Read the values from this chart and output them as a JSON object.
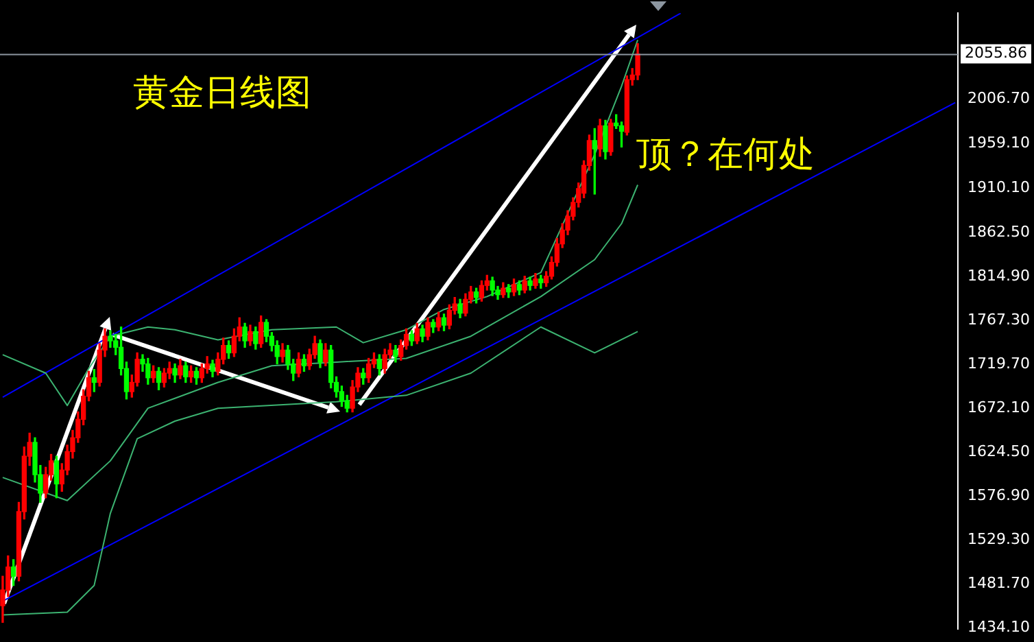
{
  "chart_data": {
    "type": "candlestick",
    "title": "黄金日线图",
    "annotations": [
      "顶？在何处"
    ],
    "categories": [
      null,
      null,
      null,
      null,
      null,
      null,
      null,
      null,
      null,
      null,
      null,
      null,
      null,
      null,
      null,
      null,
      null,
      null,
      null,
      null,
      null,
      null,
      null,
      null,
      null,
      null,
      null,
      null,
      null,
      null,
      null,
      null,
      null,
      null,
      null,
      null,
      null,
      null,
      null,
      null,
      null,
      null,
      null,
      null,
      null,
      null,
      null,
      null,
      null,
      null,
      null,
      null,
      null,
      null,
      null,
      null,
      null,
      null,
      null,
      null,
      null,
      null,
      null,
      null,
      null,
      null,
      null,
      null,
      null,
      null,
      null,
      null,
      null,
      null,
      null,
      null,
      null,
      null,
      null,
      null,
      null,
      null,
      null,
      null,
      null,
      null,
      null,
      null,
      null,
      null,
      null,
      null,
      null,
      null,
      null,
      null,
      null,
      null,
      null,
      null,
      null,
      null,
      null,
      null,
      null,
      null,
      null,
      null,
      null,
      null,
      null,
      null,
      null,
      null,
      null,
      null,
      null,
      null,
      null,
      null,
      null,
      null,
      null,
      null,
      null,
      null,
      null,
      null,
      null,
      null,
      null,
      null,
      null,
      null,
      null,
      null,
      null,
      null,
      null,
      null,
      null,
      null,
      null,
      null,
      null,
      null,
      null,
      null,
      null,
      null,
      null,
      null,
      null,
      null,
      null,
      null,
      null,
      null,
      null,
      null,
      null,
      null,
      null,
      null,
      null,
      null,
      null,
      null,
      null,
      null,
      null,
      null,
      null,
      null,
      null,
      null,
      null,
      null
    ],
    "ohlc": [
      [
        1458,
        1490,
        1440,
        1475
      ],
      [
        1475,
        1512,
        1468,
        1500
      ],
      [
        1500,
        1508,
        1480,
        1490
      ],
      [
        1490,
        1570,
        1485,
        1560
      ],
      [
        1560,
        1630,
        1552,
        1620
      ],
      [
        1620,
        1645,
        1610,
        1635
      ],
      [
        1635,
        1640,
        1592,
        1600
      ],
      [
        1600,
        1610,
        1570,
        1580
      ],
      [
        1580,
        1608,
        1575,
        1600
      ],
      [
        1600,
        1622,
        1594,
        1615
      ],
      [
        1615,
        1620,
        1575,
        1590
      ],
      [
        1590,
        1612,
        1582,
        1605
      ],
      [
        1605,
        1632,
        1600,
        1625
      ],
      [
        1625,
        1648,
        1618,
        1640
      ],
      [
        1640,
        1668,
        1635,
        1660
      ],
      [
        1660,
        1692,
        1654,
        1685
      ],
      [
        1685,
        1712,
        1680,
        1705
      ],
      [
        1705,
        1714,
        1690,
        1700
      ],
      [
        1700,
        1742,
        1696,
        1735
      ],
      [
        1735,
        1758,
        1728,
        1750
      ],
      [
        1750,
        1756,
        1738,
        1745
      ],
      [
        1745,
        1752,
        1730,
        1738
      ],
      [
        1738,
        1760,
        1708,
        1715
      ],
      [
        1715,
        1722,
        1682,
        1690
      ],
      [
        1690,
        1708,
        1684,
        1700
      ],
      [
        1700,
        1732,
        1696,
        1725
      ],
      [
        1725,
        1730,
        1712,
        1720
      ],
      [
        1720,
        1726,
        1698,
        1705
      ],
      [
        1705,
        1718,
        1700,
        1712
      ],
      [
        1712,
        1716,
        1692,
        1700
      ],
      [
        1700,
        1715,
        1695,
        1710
      ],
      [
        1710,
        1722,
        1704,
        1715
      ],
      [
        1715,
        1720,
        1700,
        1708
      ],
      [
        1708,
        1725,
        1704,
        1718
      ],
      [
        1718,
        1722,
        1700,
        1706
      ],
      [
        1706,
        1718,
        1700,
        1712
      ],
      [
        1712,
        1716,
        1698,
        1705
      ],
      [
        1705,
        1720,
        1700,
        1715
      ],
      [
        1715,
        1728,
        1710,
        1720
      ],
      [
        1720,
        1724,
        1706,
        1712
      ],
      [
        1712,
        1732,
        1708,
        1725
      ],
      [
        1725,
        1748,
        1720,
        1740
      ],
      [
        1740,
        1745,
        1726,
        1732
      ],
      [
        1732,
        1758,
        1728,
        1750
      ],
      [
        1750,
        1770,
        1745,
        1760
      ],
      [
        1760,
        1764,
        1738,
        1745
      ],
      [
        1745,
        1762,
        1740,
        1755
      ],
      [
        1755,
        1760,
        1736,
        1742
      ],
      [
        1742,
        1772,
        1738,
        1765
      ],
      [
        1765,
        1768,
        1744,
        1750
      ],
      [
        1750,
        1754,
        1734,
        1740
      ],
      [
        1740,
        1745,
        1720,
        1728
      ],
      [
        1728,
        1742,
        1722,
        1735
      ],
      [
        1735,
        1740,
        1714,
        1720
      ],
      [
        1720,
        1725,
        1702,
        1710
      ],
      [
        1710,
        1732,
        1706,
        1725
      ],
      [
        1725,
        1730,
        1712,
        1718
      ],
      [
        1718,
        1736,
        1714,
        1730
      ],
      [
        1730,
        1750,
        1726,
        1742
      ],
      [
        1742,
        1746,
        1716,
        1722
      ],
      [
        1722,
        1742,
        1718,
        1735
      ],
      [
        1735,
        1740,
        1694,
        1700
      ],
      [
        1700,
        1706,
        1684,
        1690
      ],
      [
        1690,
        1696,
        1674,
        1680
      ],
      [
        1680,
        1686,
        1668,
        1672
      ],
      [
        1672,
        1702,
        1668,
        1695
      ],
      [
        1695,
        1716,
        1690,
        1710
      ],
      [
        1710,
        1715,
        1698,
        1705
      ],
      [
        1705,
        1726,
        1700,
        1720
      ],
      [
        1720,
        1732,
        1716,
        1725
      ],
      [
        1725,
        1730,
        1708,
        1715
      ],
      [
        1715,
        1736,
        1710,
        1730
      ],
      [
        1730,
        1742,
        1726,
        1735
      ],
      [
        1735,
        1740,
        1722,
        1728
      ],
      [
        1728,
        1746,
        1724,
        1740
      ],
      [
        1740,
        1758,
        1736,
        1752
      ],
      [
        1752,
        1756,
        1740,
        1745
      ],
      [
        1745,
        1764,
        1742,
        1758
      ],
      [
        1758,
        1762,
        1744,
        1750
      ],
      [
        1750,
        1770,
        1746,
        1765
      ],
      [
        1765,
        1768,
        1754,
        1760
      ],
      [
        1760,
        1776,
        1756,
        1770
      ],
      [
        1770,
        1774,
        1756,
        1762
      ],
      [
        1762,
        1784,
        1758,
        1778
      ],
      [
        1778,
        1792,
        1774,
        1785
      ],
      [
        1785,
        1790,
        1770,
        1775
      ],
      [
        1775,
        1796,
        1772,
        1790
      ],
      [
        1790,
        1804,
        1786,
        1798
      ],
      [
        1798,
        1802,
        1786,
        1792
      ],
      [
        1792,
        1810,
        1788,
        1805
      ],
      [
        1805,
        1816,
        1800,
        1810
      ],
      [
        1810,
        1814,
        1794,
        1800
      ],
      [
        1800,
        1804,
        1790,
        1795
      ],
      [
        1795,
        1808,
        1792,
        1802
      ],
      [
        1802,
        1806,
        1792,
        1798
      ],
      [
        1798,
        1812,
        1794,
        1806
      ],
      [
        1806,
        1810,
        1795,
        1800
      ],
      [
        1800,
        1815,
        1797,
        1810
      ],
      [
        1810,
        1814,
        1800,
        1805
      ],
      [
        1805,
        1818,
        1802,
        1812
      ],
      [
        1812,
        1816,
        1802,
        1808
      ],
      [
        1808,
        1820,
        1804,
        1815
      ],
      [
        1815,
        1836,
        1812,
        1830
      ],
      [
        1830,
        1856,
        1826,
        1850
      ],
      [
        1850,
        1872,
        1846,
        1865
      ],
      [
        1865,
        1886,
        1860,
        1880
      ],
      [
        1880,
        1900,
        1876,
        1895
      ],
      [
        1895,
        1916,
        1890,
        1910
      ],
      [
        1905,
        1940,
        1900,
        1935
      ],
      [
        1935,
        1968,
        1930,
        1962
      ],
      [
        1962,
        1975,
        1904,
        1953
      ],
      [
        1953,
        1985,
        1945,
        1978
      ],
      [
        1978,
        1984,
        1942,
        1950
      ],
      [
        1950,
        1985,
        1946,
        1981
      ],
      [
        1981,
        1990,
        1975,
        1978
      ],
      [
        1978,
        1982,
        1955,
        1972
      ],
      [
        1971,
        2032,
        1968,
        2028
      ],
      [
        2028,
        2040,
        2022,
        2033
      ],
      [
        2033,
        2067,
        2028,
        2055.86
      ],
      null,
      null,
      null,
      null,
      null,
      null,
      null,
      null,
      null,
      null,
      null,
      null,
      null,
      null,
      null,
      null,
      null,
      null,
      null,
      null,
      null,
      null,
      null,
      null,
      null,
      null,
      null,
      null,
      null,
      null,
      null,
      null,
      null,
      null,
      null,
      null,
      null,
      null,
      null,
      null,
      null,
      null,
      null,
      null,
      null,
      null,
      null,
      null,
      null,
      null,
      null,
      null,
      null,
      null,
      null,
      null,
      null,
      null,
      null
    ],
    "series": [
      {
        "type": "line",
        "color": "#3cb371",
        "values": [
          1730,
          null,
          null,
          null,
          null,
          null,
          null,
          null,
          1710,
          null,
          null,
          null,
          1675,
          null,
          null,
          null,
          1715,
          null,
          null,
          null,
          1750,
          null,
          null,
          null,
          null,
          null,
          null,
          1760,
          null,
          null,
          null,
          null,
          1757,
          null,
          null,
          null,
          null,
          null,
          null,
          null,
          1746,
          null,
          null,
          null,
          null,
          null,
          null,
          null,
          null,
          null,
          1757,
          null,
          null,
          null,
          null,
          null,
          null,
          null,
          null,
          null,
          null,
          null,
          1760,
          null,
          null,
          null,
          null,
          1743,
          null,
          null,
          null,
          null,
          null,
          null,
          null,
          1757,
          null,
          null,
          null,
          null,
          null,
          null,
          1779,
          null,
          null,
          null,
          null,
          null,
          null,
          null,
          1793,
          null,
          null,
          null,
          null,
          null,
          null,
          null,
          null,
          null,
          1819,
          null,
          null,
          null,
          null,
          null,
          null,
          null,
          null,
          null,
          1947,
          null,
          null,
          null,
          null,
          2021,
          null,
          null,
          2071,
          null,
          null,
          null,
          null,
          null,
          null,
          null,
          null,
          null,
          null,
          null,
          null,
          null,
          null,
          null,
          null,
          null,
          null,
          null,
          null,
          null,
          null,
          null,
          null,
          null,
          null,
          null,
          null,
          null,
          null,
          null,
          null,
          null,
          null,
          null,
          null,
          null,
          null,
          null,
          null,
          null,
          null,
          null,
          null,
          null,
          null,
          null,
          null,
          null,
          null,
          null,
          null,
          null,
          null,
          null,
          null,
          null,
          null,
          null
        ]
      },
      {
        "type": "line",
        "color": "#3cb371",
        "values": [
          1597,
          null,
          null,
          null,
          null,
          null,
          null,
          null,
          null,
          null,
          null,
          null,
          1572,
          null,
          null,
          null,
          null,
          null,
          null,
          null,
          1615,
          null,
          null,
          null,
          null,
          null,
          null,
          1672,
          null,
          null,
          null,
          null,
          null,
          null,
          null,
          null,
          null,
          null,
          null,
          null,
          1700,
          null,
          null,
          null,
          null,
          null,
          null,
          null,
          null,
          null,
          1718,
          null,
          null,
          null,
          null,
          null,
          null,
          null,
          null,
          null,
          null,
          null,
          1722,
          null,
          null,
          null,
          null,
          null,
          null,
          null,
          null,
          null,
          null,
          null,
          null,
          1726,
          null,
          null,
          null,
          null,
          null,
          null,
          null,
          null,
          null,
          null,
          null,
          1750,
          null,
          null,
          null,
          null,
          null,
          null,
          null,
          null,
          null,
          null,
          null,
          null,
          1793,
          null,
          null,
          null,
          null,
          null,
          null,
          null,
          null,
          null,
          1833,
          null,
          null,
          null,
          null,
          1872,
          null,
          null,
          1914,
          null,
          null,
          null,
          null,
          null,
          null,
          null,
          null,
          null,
          null,
          null,
          null,
          null,
          null,
          null,
          null,
          null,
          null,
          null,
          null,
          null,
          null,
          null,
          null,
          null,
          null,
          null,
          null,
          null,
          null,
          null,
          null,
          null,
          null,
          null,
          null,
          null,
          null,
          null,
          null,
          null,
          null,
          null,
          null,
          null,
          null,
          null,
          null,
          null,
          null,
          null,
          null,
          null,
          null,
          null,
          null,
          null,
          null,
          null
        ]
      },
      {
        "type": "line",
        "color": "#3cb371",
        "values": [
          1448,
          null,
          null,
          null,
          null,
          null,
          null,
          null,
          null,
          null,
          null,
          null,
          1451,
          null,
          null,
          null,
          null,
          1480,
          null,
          null,
          1558,
          null,
          null,
          null,
          null,
          1639,
          null,
          null,
          null,
          null,
          null,
          null,
          1658,
          null,
          null,
          null,
          null,
          null,
          null,
          null,
          1672,
          null,
          null,
          null,
          null,
          null,
          null,
          null,
          null,
          null,
          null,
          null,
          null,
          null,
          null,
          null,
          null,
          null,
          null,
          null,
          null,
          null,
          1679,
          null,
          null,
          null,
          null,
          null,
          null,
          null,
          null,
          null,
          null,
          null,
          null,
          1686,
          null,
          null,
          null,
          null,
          null,
          null,
          null,
          null,
          null,
          null,
          null,
          1710,
          null,
          null,
          null,
          null,
          null,
          null,
          null,
          null,
          null,
          null,
          null,
          null,
          1760,
          null,
          null,
          null,
          null,
          null,
          null,
          null,
          null,
          null,
          1732,
          null,
          null,
          null,
          null,
          null,
          null,
          null,
          1755,
          null,
          null,
          null,
          null,
          null,
          null,
          null,
          null,
          null,
          null,
          null,
          null,
          null,
          null,
          null,
          null,
          null,
          null,
          null,
          null,
          null,
          null,
          null,
          null,
          null,
          null,
          null,
          null,
          null,
          null,
          null,
          null,
          null,
          null,
          null,
          null,
          null,
          null,
          null,
          null,
          null,
          null,
          null,
          null,
          null,
          null,
          null,
          null,
          null,
          null,
          null,
          null,
          null,
          null,
          null,
          null,
          null,
          null,
          null
        ]
      },
      {
        "type": "line",
        "color": "#0000ff",
        "values": [
          1684,
          null,
          null,
          null,
          null,
          null,
          null,
          null,
          null,
          null,
          null,
          null,
          null,
          null,
          null,
          null,
          null,
          null,
          null,
          null,
          null,
          null,
          null,
          null,
          null,
          null,
          null,
          null,
          null,
          null,
          null,
          null,
          null,
          null,
          null,
          null,
          null,
          null,
          null,
          null,
          null,
          null,
          null,
          null,
          null,
          null,
          null,
          null,
          null,
          null,
          null,
          null,
          null,
          null,
          null,
          null,
          null,
          null,
          null,
          null,
          null,
          null,
          null,
          null,
          null,
          null,
          null,
          null,
          null,
          null,
          null,
          null,
          null,
          null,
          null,
          null,
          null,
          null,
          null,
          null,
          null,
          null,
          null,
          null,
          null,
          null,
          null,
          null,
          null,
          null,
          null,
          null,
          null,
          null,
          null,
          null,
          null,
          null,
          null,
          null,
          null,
          null,
          null,
          null,
          null,
          null,
          null,
          null,
          null,
          null,
          null,
          null,
          null,
          null,
          null,
          null,
          null,
          null,
          null,
          null,
          null,
          null,
          null,
          null,
          null,
          null,
          2100,
          null,
          null,
          null,
          null,
          null,
          null,
          null,
          null,
          null,
          null,
          null,
          null,
          null,
          null,
          null,
          null,
          null,
          null,
          null,
          null,
          null,
          null,
          null,
          null,
          null,
          null,
          null,
          null,
          null,
          null,
          null,
          null,
          null,
          null,
          null,
          null,
          null,
          null,
          null,
          null,
          null,
          null,
          null,
          null,
          null,
          null,
          null,
          null,
          null,
          null,
          null
        ]
      },
      {
        "type": "line",
        "color": "#0000ff",
        "values": [
          1463,
          null,
          null,
          null,
          null,
          null,
          null,
          null,
          null,
          null,
          null,
          null,
          null,
          null,
          null,
          null,
          null,
          null,
          null,
          null,
          null,
          null,
          null,
          null,
          null,
          null,
          null,
          null,
          null,
          null,
          null,
          null,
          null,
          null,
          null,
          null,
          null,
          null,
          null,
          null,
          null,
          null,
          null,
          null,
          null,
          null,
          null,
          null,
          null,
          null,
          null,
          null,
          null,
          null,
          null,
          null,
          null,
          null,
          null,
          null,
          null,
          null,
          null,
          null,
          null,
          null,
          null,
          null,
          null,
          null,
          null,
          null,
          null,
          null,
          null,
          null,
          null,
          null,
          null,
          null,
          null,
          null,
          null,
          null,
          null,
          null,
          null,
          null,
          null,
          null,
          null,
          null,
          null,
          null,
          null,
          null,
          null,
          null,
          null,
          null,
          null,
          null,
          null,
          null,
          null,
          null,
          null,
          null,
          null,
          null,
          null,
          null,
          null,
          null,
          null,
          null,
          null,
          null,
          null,
          null,
          null,
          null,
          null,
          null,
          null,
          null,
          null,
          null,
          null,
          null,
          null,
          null,
          null,
          null,
          null,
          null,
          null,
          null,
          null,
          null,
          null,
          null,
          null,
          null,
          null,
          null,
          null,
          null,
          null,
          null,
          null,
          null,
          null,
          null,
          null,
          null,
          null,
          null,
          null,
          null,
          null,
          null,
          null,
          null,
          null,
          null,
          null,
          null,
          null,
          null,
          null,
          null,
          null,
          null,
          null,
          null,
          null,
          2003
        ]
      }
    ],
    "ref_lines": [
      {
        "axis": "y",
        "value": 2055.86,
        "label": "2055.86",
        "color": "#8c96a0"
      }
    ],
    "ylim": [
      1433,
      2100
    ],
    "yticks": [
      {
        "value": 2006.7,
        "label": "2006.70"
      },
      {
        "value": 1959.1,
        "label": "1959.10"
      },
      {
        "value": 1910.1,
        "label": "1910.10"
      },
      {
        "value": 1862.5,
        "label": "1862.50"
      },
      {
        "value": 1814.9,
        "label": "1814.90"
      },
      {
        "value": 1767.3,
        "label": "1767.30"
      },
      {
        "value": 1719.7,
        "label": "1719.70"
      },
      {
        "value": 1672.1,
        "label": "1672.10"
      },
      {
        "value": 1624.5,
        "label": "1624.50"
      },
      {
        "value": 1576.9,
        "label": "1576.90"
      },
      {
        "value": 1529.3,
        "label": "1529.30"
      },
      {
        "value": 1481.7,
        "label": "1481.70"
      },
      {
        "value": 1434.1,
        "label": "1434.10"
      }
    ],
    "grid": false,
    "legend": false,
    "tick_labels": "y"
  }
}
